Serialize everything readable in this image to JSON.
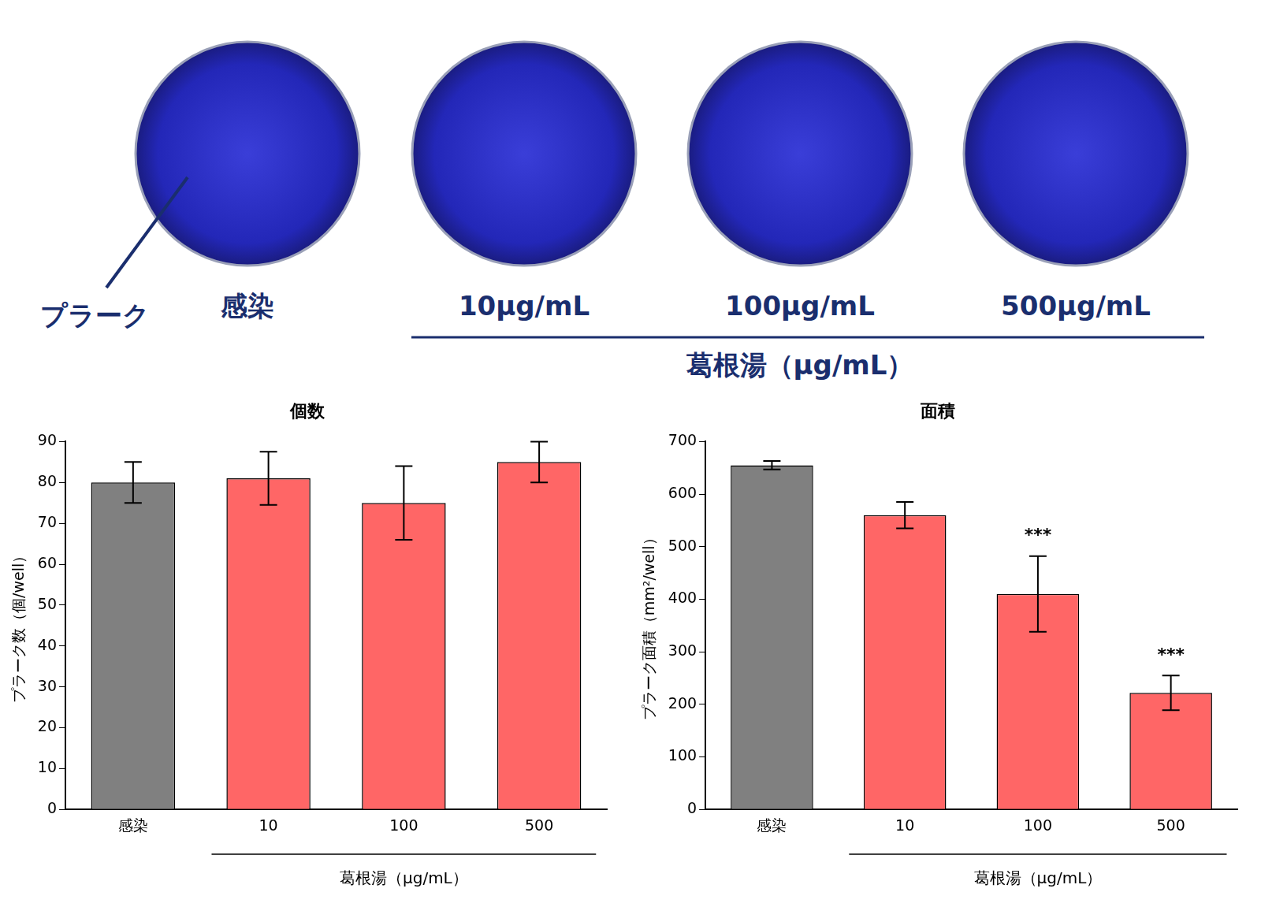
{
  "image_panel": {
    "pointer_label": "プラーク",
    "labels": [
      "感染",
      "10μg/mL",
      "100μg/mL",
      "500μg/mL"
    ],
    "group_label": "葛根湯（μg/mL）"
  },
  "chart_data": [
    {
      "type": "bar",
      "title": "個数",
      "categories": [
        "感染",
        "10",
        "100",
        "500"
      ],
      "values": [
        80,
        81,
        75,
        85
      ],
      "errors": [
        5,
        6.5,
        9,
        5
      ],
      "colors": [
        "#808080",
        "#ff6666",
        "#ff6666",
        "#ff6666"
      ],
      "y_label": "プラーク数（個/well）",
      "ylim": [
        0,
        90
      ],
      "yticks": [
        0,
        10,
        20,
        30,
        40,
        50,
        60,
        70,
        80,
        90
      ],
      "grid": false,
      "x_group": {
        "label": "葛根湯（μg/mL）",
        "categories": [
          "10",
          "100",
          "500"
        ]
      }
    },
    {
      "type": "bar",
      "title": "面積",
      "categories": [
        "感染",
        "10",
        "100",
        "500"
      ],
      "values": [
        655,
        560,
        410,
        222
      ],
      "errors": [
        8,
        25,
        72,
        33
      ],
      "colors": [
        "#808080",
        "#ff6666",
        "#ff6666",
        "#ff6666"
      ],
      "y_label": "プラーク面積（mm²/well）",
      "ylim": [
        0,
        700
      ],
      "yticks": [
        0,
        100,
        200,
        300,
        400,
        500,
        600,
        700
      ],
      "grid": false,
      "x_group": {
        "label": "葛根湯（μg/mL）",
        "categories": [
          "10",
          "100",
          "500"
        ]
      },
      "annotations": [
        {
          "category": "100",
          "text": "***"
        },
        {
          "category": "500",
          "text": "***"
        }
      ]
    }
  ]
}
